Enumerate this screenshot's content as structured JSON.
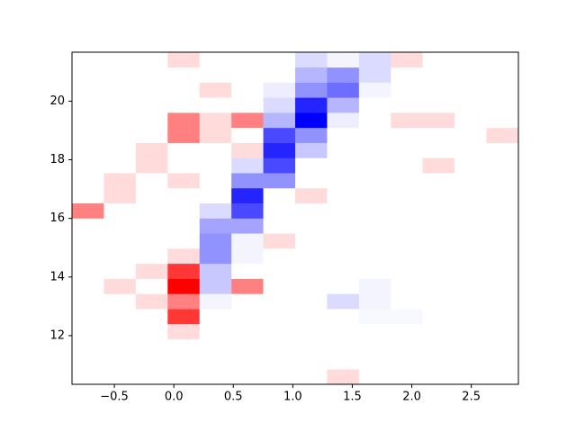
{
  "chart_data": {
    "type": "heatmap",
    "colormap": "bwr",
    "vlim": [
      -7,
      7
    ],
    "x_bins": [
      -0.856,
      -0.588,
      -0.32,
      -0.052,
      0.216,
      0.484,
      0.752,
      1.02,
      1.288,
      1.556,
      1.824,
      2.092,
      2.36,
      2.628,
      2.896
    ],
    "y_bins": [
      10.34,
      10.855,
      11.37,
      11.885,
      12.4,
      12.915,
      13.43,
      13.945,
      14.46,
      14.975,
      15.49,
      16.005,
      16.52,
      17.035,
      17.55,
      18.065,
      18.58,
      19.095,
      19.61,
      20.125,
      20.64,
      21.155,
      21.67
    ],
    "values": [
      [
        0,
        0,
        0,
        0,
        0,
        0,
        0,
        0,
        1,
        0,
        0,
        0,
        0,
        0
      ],
      [
        0,
        0,
        0,
        0,
        0,
        0,
        0,
        0,
        0,
        0,
        0,
        0,
        0,
        0
      ],
      [
        0,
        0,
        0,
        0,
        0,
        0,
        0,
        0,
        0,
        0,
        0,
        0,
        0,
        0
      ],
      [
        0,
        0,
        0,
        1,
        0,
        0,
        0,
        0,
        0,
        0,
        0,
        0,
        0,
        0
      ],
      [
        0,
        0,
        0,
        5.5,
        0,
        0,
        0,
        0,
        0,
        -0.2,
        -0.2,
        0,
        0,
        0
      ],
      [
        0,
        0,
        1,
        3.5,
        -0.3,
        0,
        0,
        0,
        -1,
        -0.3,
        0,
        0,
        0,
        0
      ],
      [
        0,
        1,
        0,
        7,
        -1.5,
        3.5,
        0,
        0,
        0,
        -0.3,
        0,
        0,
        0,
        0
      ],
      [
        0,
        0,
        1,
        5.5,
        -1.5,
        0,
        0,
        0,
        0,
        0,
        0,
        0,
        0,
        0
      ],
      [
        0,
        0,
        0,
        1,
        -3,
        -0.3,
        0,
        0,
        0,
        0,
        0,
        0,
        0,
        0
      ],
      [
        0,
        0,
        0,
        0,
        -3,
        -0.3,
        1,
        0,
        0,
        0,
        0,
        0,
        0,
        0
      ],
      [
        0,
        0,
        0,
        0,
        -2.5,
        -2.5,
        0,
        0,
        0,
        0,
        0,
        0,
        0,
        0
      ],
      [
        3.5,
        0,
        0,
        0,
        -1,
        -5,
        0,
        0,
        0,
        0,
        0,
        0,
        0,
        0
      ],
      [
        0,
        1,
        0,
        0,
        0,
        -6,
        0,
        1,
        0,
        0,
        0,
        0,
        0,
        0
      ],
      [
        0,
        1,
        0,
        1,
        0,
        -3,
        -3,
        0,
        0,
        0,
        0,
        0,
        0,
        0
      ],
      [
        0,
        0,
        1,
        0,
        0,
        -1,
        -5,
        0,
        0,
        0,
        0,
        1,
        0,
        0
      ],
      [
        0,
        0,
        1,
        0,
        0,
        1,
        -6,
        -1.5,
        0,
        0,
        0,
        0,
        0,
        0
      ],
      [
        0,
        0,
        0,
        3.5,
        1,
        0,
        -5,
        -3,
        0,
        0,
        0,
        0,
        0,
        1
      ],
      [
        0,
        0,
        0,
        3.5,
        1,
        3.5,
        -2,
        -7,
        -0.5,
        0,
        1,
        1,
        0,
        0
      ],
      [
        0,
        0,
        0,
        0,
        0,
        0,
        -1,
        -6,
        -2,
        0,
        0,
        0,
        0,
        0
      ],
      [
        0,
        0,
        0,
        0,
        1,
        0,
        -0.5,
        -3,
        -4,
        -0.3,
        0,
        0,
        0,
        0
      ],
      [
        0,
        0,
        0,
        0,
        0,
        0,
        0,
        -2,
        -3,
        -1,
        0,
        0,
        0,
        0
      ],
      [
        0,
        0,
        0,
        1,
        0,
        0,
        0,
        -1,
        -0.3,
        -1,
        1,
        0,
        0,
        0
      ]
    ],
    "xlim": [
      -0.856,
      2.896
    ],
    "ylim": [
      10.34,
      21.67
    ],
    "xticks": [
      {
        "value": -0.5,
        "label": "−0.5"
      },
      {
        "value": 0,
        "label": "0.0"
      },
      0.5,
      {
        "value": 1,
        "label": "1.0"
      },
      1.5,
      {
        "value": 2,
        "label": "2.0"
      },
      2.5
    ],
    "yticks": [
      12,
      14,
      16,
      18,
      20
    ]
  }
}
